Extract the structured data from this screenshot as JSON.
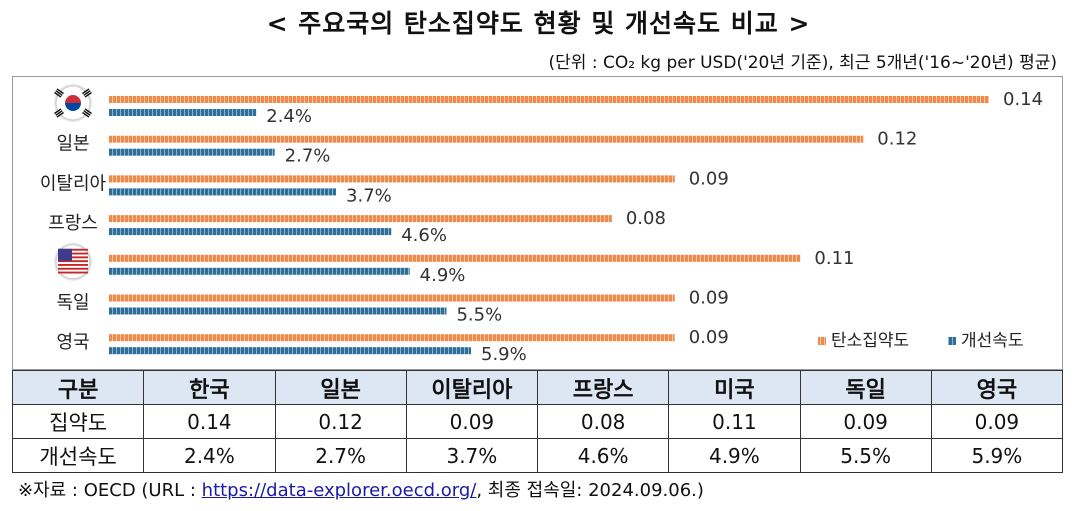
{
  "title": "< 주요국의 탄소집약도 현황 및 개선속도 비교 >",
  "unit_note": "(단위 : CO₂ kg per USD('20년 기준), 최근 5개년('16~'20년) 평균)",
  "colors": {
    "intensity": "#ee8a4b",
    "improvement": "#2e6f9a"
  },
  "chart_data": {
    "type": "bar",
    "orientation": "horizontal",
    "categories": [
      "한국",
      "일본",
      "이탈리아",
      "프랑스",
      "미국",
      "독일",
      "영국"
    ],
    "category_display": [
      {
        "flag": "korea-flag-icon"
      },
      {
        "label": "일본"
      },
      {
        "label": "이탈리아"
      },
      {
        "label": "프랑스"
      },
      {
        "flag": "usa-flag-icon"
      },
      {
        "label": "독일"
      },
      {
        "label": "영국"
      }
    ],
    "series": [
      {
        "name": "탄소집약도",
        "values": [
          0.14,
          0.12,
          0.09,
          0.08,
          0.11,
          0.09,
          0.09
        ],
        "labels": [
          "0.14",
          "0.12",
          "0.09",
          "0.08",
          "0.11",
          "0.09",
          "0.09"
        ]
      },
      {
        "name": "개선속도",
        "values": [
          2.4,
          2.7,
          3.7,
          4.6,
          4.9,
          5.5,
          5.9
        ],
        "labels": [
          "2.4%",
          "2.7%",
          "3.7%",
          "4.6%",
          "4.9%",
          "5.5%",
          "5.9%"
        ]
      }
    ],
    "legend_position": "bottom-right",
    "grid": false
  },
  "table": {
    "header": [
      "구분",
      "한국",
      "일본",
      "이탈리아",
      "프랑스",
      "미국",
      "독일",
      "영국"
    ],
    "rows": [
      [
        "집약도",
        "0.14",
        "0.12",
        "0.09",
        "0.08",
        "0.11",
        "0.09",
        "0.09"
      ],
      [
        "개선속도",
        "2.4%",
        "2.7%",
        "3.7%",
        "4.6%",
        "4.9%",
        "5.5%",
        "5.9%"
      ]
    ]
  },
  "source": {
    "prefix": "※자료 : OECD (URL : ",
    "link": "https://data-explorer.oecd.org/",
    "suffix": ", 최종 접속일: 2024.09.06.)"
  }
}
